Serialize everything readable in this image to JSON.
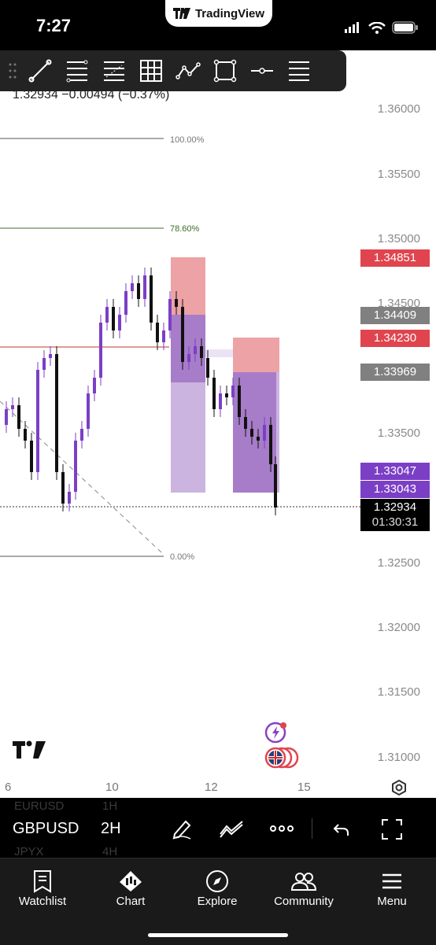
{
  "status_bar": {
    "time": "7:27",
    "brand": "TradingView"
  },
  "ohlc": {
    "text": "1.32934  −0.00494 (−0.37%)"
  },
  "toolbar": {
    "tools": [
      "drag-handle",
      "trend-line",
      "fib-retracement",
      "fib-extension",
      "grid",
      "pattern",
      "rectangle",
      "horizontal-line",
      "more-tools"
    ]
  },
  "price_axis": [
    "1.36000",
    "1.35500",
    "1.35000",
    "1.34500",
    "1.33500",
    "1.32500",
    "1.32000",
    "1.31500",
    "1.31000"
  ],
  "price_tags": [
    {
      "value": "1.34851",
      "color": "#e0454f"
    },
    {
      "value": "1.34409",
      "color": "#808080"
    },
    {
      "value": "1.34230",
      "color": "#e0454f"
    },
    {
      "value": "1.33969",
      "color": "#808080"
    },
    {
      "value": "1.33047",
      "color": "#7b3fc6"
    },
    {
      "value": "1.33043",
      "color": "#7b3fc6"
    },
    {
      "value": "1.32934",
      "color": "#000000"
    },
    {
      "value": "01:30:31",
      "color": "#000000"
    }
  ],
  "fib_levels": [
    "100.00%",
    "78.60%",
    "0.00%"
  ],
  "x_axis": [
    "6",
    "10",
    "12",
    "15"
  ],
  "symbol": {
    "current": "GBPUSD",
    "above": "EURUSD",
    "below": "JPYX"
  },
  "timeframe": {
    "current": "2H",
    "above": "1H",
    "below": "4H"
  },
  "tabs": [
    {
      "label": "Watchlist"
    },
    {
      "label": "Chart"
    },
    {
      "label": "Explore"
    },
    {
      "label": "Community"
    },
    {
      "label": "Menu"
    }
  ],
  "colors": {
    "purple": "#7b3fc6",
    "red": "#e0454f",
    "green": "#3c6d2a",
    "tag_gray": "#808080"
  }
}
